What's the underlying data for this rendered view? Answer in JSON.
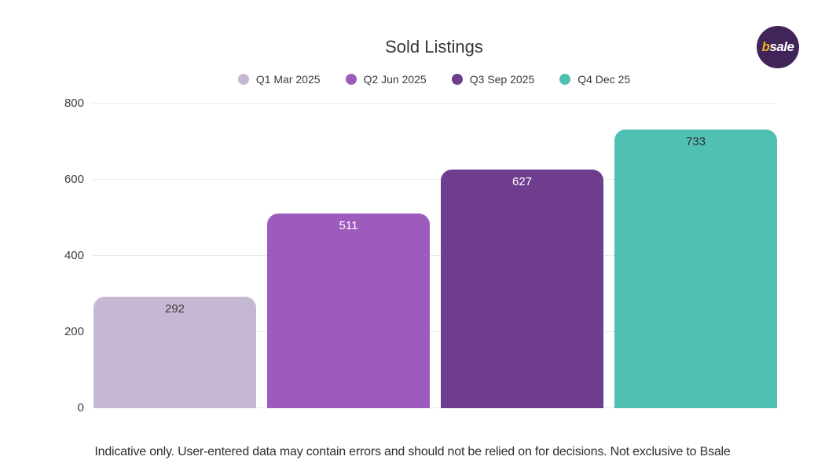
{
  "logo": {
    "b": "b",
    "sale": "sale",
    "circle_color": "#412559",
    "b_color": "#f0b719",
    "sale_color": "#ffffff"
  },
  "chart_data": {
    "type": "bar",
    "title": "Sold Listings",
    "categories": [
      "Q1 Mar 2025",
      "Q2 Jun 2025",
      "Q3 Sep 2025",
      "Q4 Dec 25"
    ],
    "values": [
      292,
      511,
      627,
      733
    ],
    "bar_colors": [
      "#c6b8d2",
      "#9c5bbd",
      "#6e3d8e",
      "#50c0b4"
    ],
    "value_label_colors": [
      "#3f3f3f",
      "#ffffff",
      "#ffffff",
      "#2f2f2f"
    ],
    "xlabel": "",
    "ylabel": "",
    "ylim": [
      0,
      800
    ],
    "yticks": [
      0,
      200,
      400,
      600,
      800
    ],
    "grid": true,
    "gridline_color": "#ececec",
    "legend_position": "top"
  },
  "legend": {
    "items": [
      {
        "label": "Q1 Mar 2025",
        "color": "#c6b8d2"
      },
      {
        "label": "Q2 Jun 2025",
        "color": "#9c5bbd"
      },
      {
        "label": "Q3 Sep 2025",
        "color": "#6e3d8e"
      },
      {
        "label": "Q4 Dec 25",
        "color": "#50c0b4"
      }
    ]
  },
  "footer": {
    "disclaimer": "Indicative only. User-entered data may contain errors and should not be relied on for decisions. Not exclusive to Bsale"
  }
}
